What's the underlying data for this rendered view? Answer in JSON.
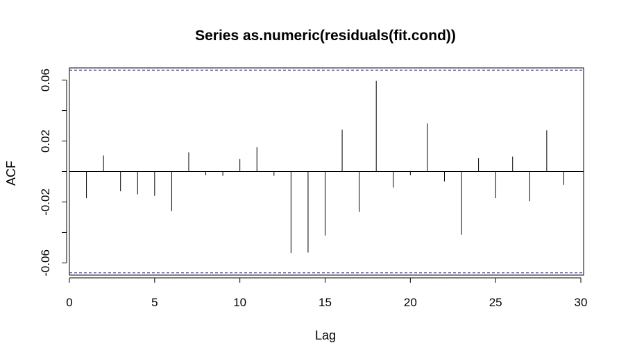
{
  "chart_data": {
    "type": "bar",
    "title": "Series as.numeric(residuals(fit.cond))",
    "xlabel": "Lag",
    "ylabel": "ACF",
    "xlim": [
      0,
      30
    ],
    "ylim": [
      -0.068,
      0.068
    ],
    "x_ticks": [
      "0",
      "5",
      "10",
      "15",
      "20",
      "25",
      "30"
    ],
    "y_ticks": [
      "-0.06",
      "-0.02",
      "0.02",
      "0.06"
    ],
    "confidence_band": [
      -0.0665,
      0.0665
    ],
    "grid": false,
    "legend": "none",
    "lags": [
      1,
      2,
      3,
      4,
      5,
      6,
      7,
      8,
      9,
      10,
      11,
      12,
      13,
      14,
      15,
      16,
      17,
      18,
      19,
      20,
      21,
      22,
      23,
      24,
      25,
      26,
      27,
      28,
      29
    ],
    "values": [
      -0.0175,
      0.0105,
      -0.013,
      -0.015,
      -0.016,
      -0.026,
      0.0125,
      -0.0025,
      -0.0028,
      0.0082,
      0.016,
      -0.0028,
      -0.0535,
      -0.0532,
      -0.042,
      0.0275,
      -0.0265,
      0.0595,
      -0.0105,
      -0.0025,
      0.0315,
      -0.0065,
      -0.0415,
      0.0088,
      -0.0175,
      0.0098,
      -0.0195,
      0.027,
      -0.0088
    ]
  }
}
